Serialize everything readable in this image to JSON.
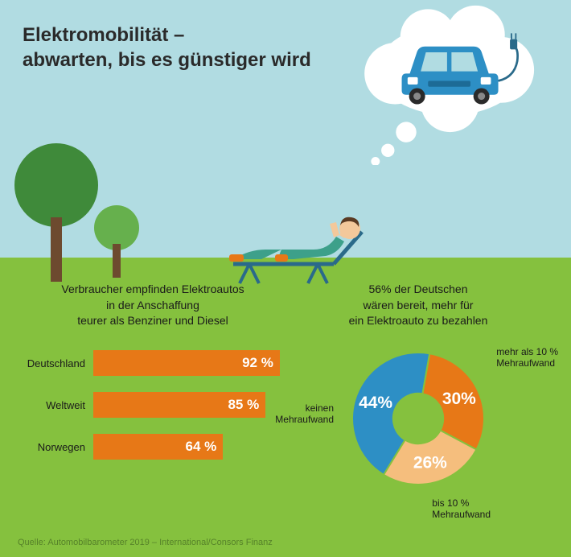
{
  "title_line1": "Elektromobilität –",
  "title_line2": "abwarten, bis es günstiger wird",
  "colors": {
    "sky": "#b1dce2",
    "grass": "#85c13e",
    "bar": "#e77817",
    "car": "#2d8fc5",
    "pie_blue": "#2d8fc5",
    "pie_orange": "#e77817",
    "pie_lightorange": "#f5be7d",
    "tree_dark": "#3f8a3a",
    "tree_light": "#66b04d",
    "trunk": "#6d4a2f",
    "cloud": "#ffffff",
    "person_skin": "#f3c89b",
    "person_hair": "#5a3a22",
    "chair": "#2a6a8a",
    "text": "#1a1a1a"
  },
  "bar_chart": {
    "title": "Verbraucher empfinden Elektroautos\nin der Anschaffung\nteurer als Benziner und Diesel",
    "max": 100,
    "bars": [
      {
        "label": "Deutschland",
        "value": 92,
        "display": "92 %"
      },
      {
        "label": "Weltweit",
        "value": 85,
        "display": "85 %"
      },
      {
        "label": "Norwegen",
        "value": 64,
        "display": "64 %"
      }
    ]
  },
  "pie_chart": {
    "title": "56% der Deutschen\nwären bereit, mehr für\nein Elektroauto zu bezahlen",
    "slices": [
      {
        "label": "keinen\nMehraufwand",
        "value": 44,
        "display": "44%",
        "color": "#2d8fc5"
      },
      {
        "label": "mehr als 10 %\nMehraufwand",
        "value": 30,
        "display": "30%",
        "color": "#e77817"
      },
      {
        "label": "bis 10 %\nMehraufwand",
        "value": 26,
        "display": "26%",
        "color": "#f5be7d"
      }
    ],
    "inner_ratio": 0.38
  },
  "source": "Quelle: Automobilbarometer 2019 – International/Consors Finanz"
}
